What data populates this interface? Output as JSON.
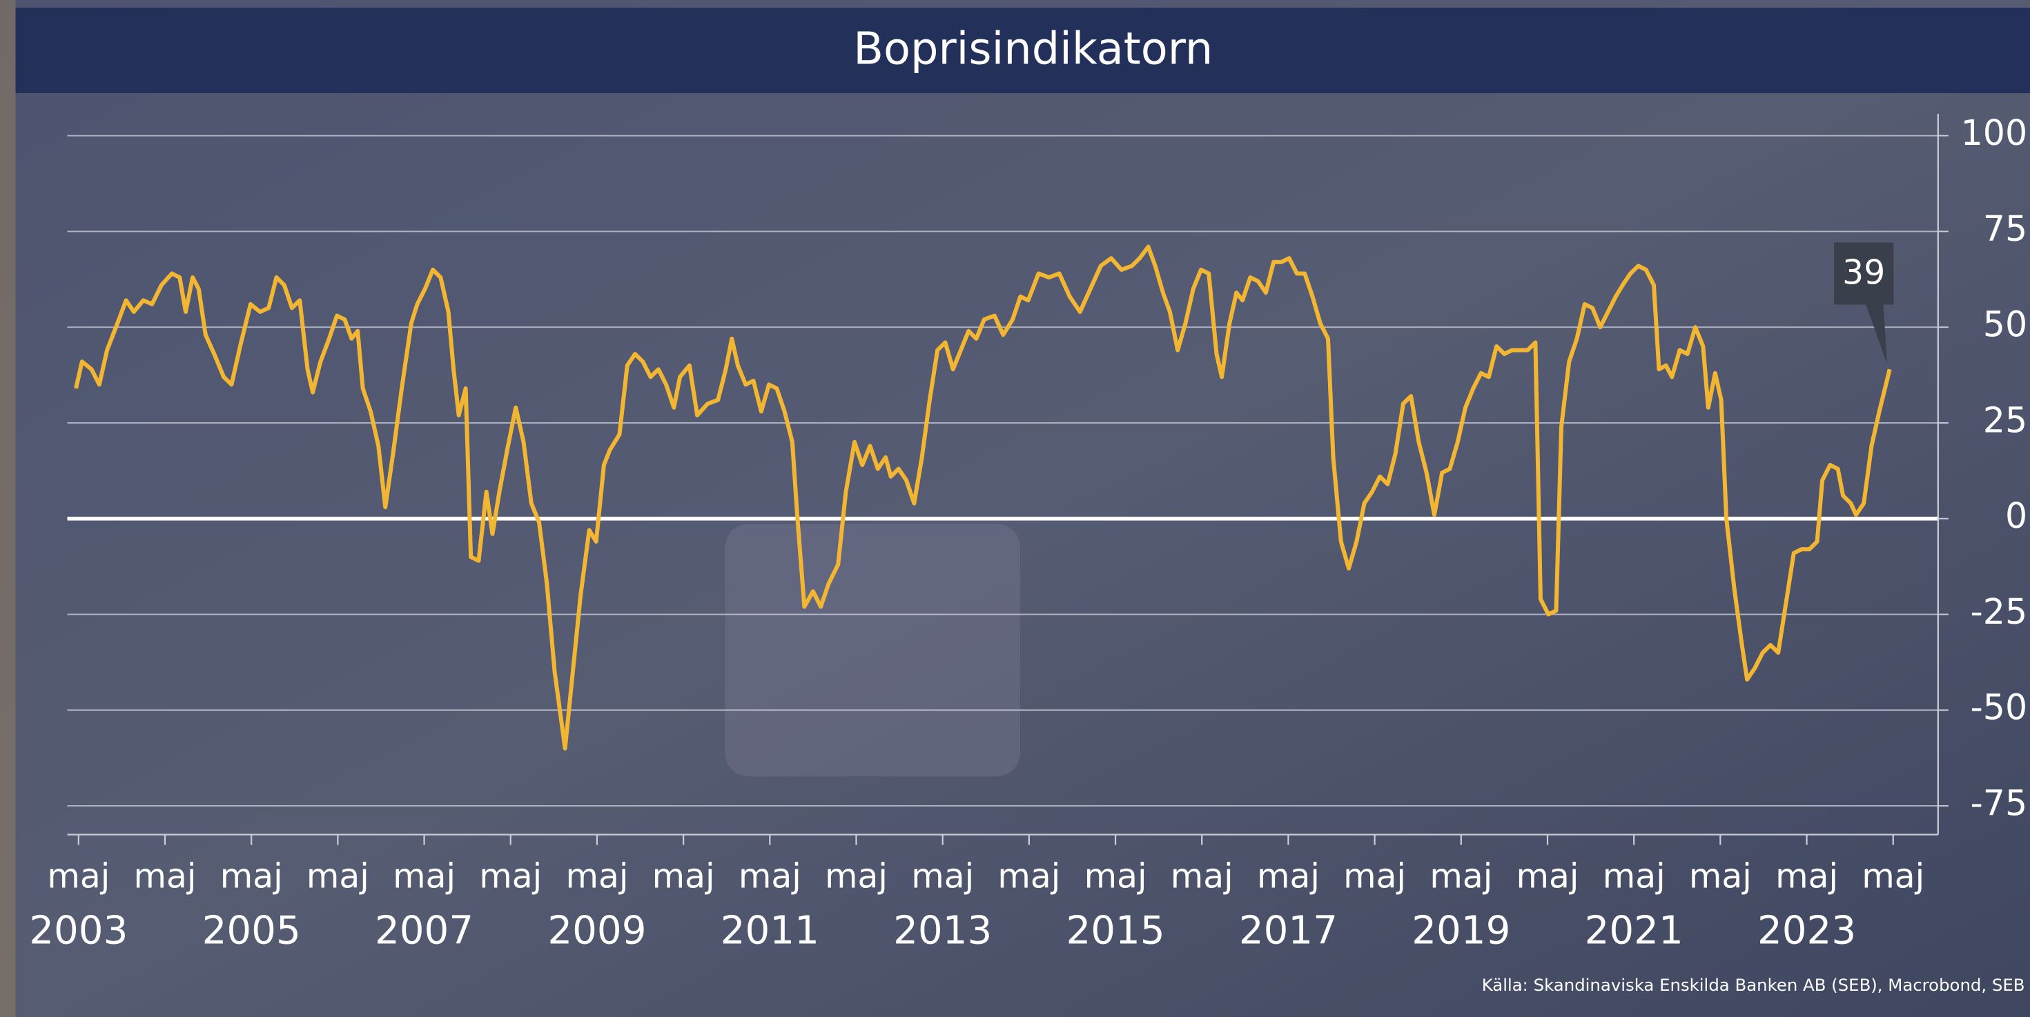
{
  "chart_data": {
    "type": "line",
    "title": "Boprisindikatorn",
    "source": "Källa: Skandinaviska Enskilda Banken AB (SEB), Macrobond, SEB",
    "xlim": [
      2003.2,
      2024.85
    ],
    "ylim": [
      -82.5,
      105.7
    ],
    "yticks": [
      100,
      75,
      50,
      25,
      0,
      -25,
      -50,
      -75
    ],
    "grid": true,
    "xticks": [
      {
        "value": 2003.33,
        "label": "maj"
      },
      {
        "value": 2004.33,
        "label": "maj"
      },
      {
        "value": 2005.33,
        "label": "maj"
      },
      {
        "value": 2006.33,
        "label": "maj"
      },
      {
        "value": 2007.33,
        "label": "maj"
      },
      {
        "value": 2008.33,
        "label": "maj"
      },
      {
        "value": 2009.33,
        "label": "maj"
      },
      {
        "value": 2010.33,
        "label": "maj"
      },
      {
        "value": 2011.33,
        "label": "maj"
      },
      {
        "value": 2012.33,
        "label": "maj"
      },
      {
        "value": 2013.33,
        "label": "maj"
      },
      {
        "value": 2014.33,
        "label": "maj"
      },
      {
        "value": 2015.33,
        "label": "maj"
      },
      {
        "value": 2016.33,
        "label": "maj"
      },
      {
        "value": 2017.33,
        "label": "maj"
      },
      {
        "value": 2018.33,
        "label": "maj"
      },
      {
        "value": 2019.33,
        "label": "maj"
      },
      {
        "value": 2020.33,
        "label": "maj"
      },
      {
        "value": 2021.33,
        "label": "maj"
      },
      {
        "value": 2022.33,
        "label": "maj"
      },
      {
        "value": 2023.33,
        "label": "maj"
      },
      {
        "value": 2024.33,
        "label": "maj"
      }
    ],
    "year_labels": [
      {
        "value": 2003.33,
        "label": "2003"
      },
      {
        "value": 2005.33,
        "label": "2005"
      },
      {
        "value": 2007.33,
        "label": "2007"
      },
      {
        "value": 2009.33,
        "label": "2009"
      },
      {
        "value": 2011.33,
        "label": "2011"
      },
      {
        "value": 2013.33,
        "label": "2013"
      },
      {
        "value": 2015.33,
        "label": "2015"
      },
      {
        "value": 2017.33,
        "label": "2017"
      },
      {
        "value": 2019.33,
        "label": "2019"
      },
      {
        "value": 2021.33,
        "label": "2021"
      },
      {
        "value": 2023.33,
        "label": "2023"
      }
    ],
    "x": [
      2003.3,
      2003.37,
      2003.48,
      2003.57,
      2003.66,
      2003.78,
      2003.88,
      2003.97,
      2004.08,
      2004.18,
      2004.29,
      2004.41,
      2004.5,
      2004.57,
      2004.65,
      2004.72,
      2004.8,
      2004.9,
      2005.01,
      2005.1,
      2005.2,
      2005.32,
      2005.43,
      2005.53,
      2005.62,
      2005.71,
      2005.8,
      2005.89,
      2005.98,
      2006.04,
      2006.13,
      2006.23,
      2006.32,
      2006.41,
      2006.49,
      2006.56,
      2006.62,
      2006.71,
      2006.8,
      2006.88,
      2006.97,
      2007.07,
      2007.18,
      2007.25,
      2007.34,
      2007.43,
      2007.52,
      2007.61,
      2007.67,
      2007.73,
      2007.81,
      2007.87,
      2007.96,
      2008.05,
      2008.12,
      2008.2,
      2008.3,
      2008.39,
      2008.48,
      2008.57,
      2008.66,
      2008.75,
      2008.84,
      2008.96,
      2009.05,
      2009.14,
      2009.24,
      2009.32,
      2009.41,
      2009.48,
      2009.59,
      2009.68,
      2009.77,
      2009.86,
      2009.95,
      2010.04,
      2010.13,
      2010.22,
      2010.29,
      2010.4,
      2010.49,
      2010.61,
      2010.73,
      2010.82,
      2010.89,
      2010.96,
      2011.05,
      2011.14,
      2011.23,
      2011.32,
      2011.41,
      2011.5,
      2011.59,
      2011.65,
      2011.73,
      2011.83,
      2011.92,
      2012.01,
      2012.12,
      2012.21,
      2012.31,
      2012.4,
      2012.49,
      2012.58,
      2012.67,
      2012.73,
      2012.82,
      2012.91,
      2013.0,
      2013.09,
      2013.18,
      2013.27,
      2013.36,
      2013.45,
      2013.54,
      2013.63,
      2013.72,
      2013.81,
      2013.93,
      2014.03,
      2014.14,
      2014.23,
      2014.32,
      2014.44,
      2014.56,
      2014.68,
      2014.8,
      2014.92,
      2015.04,
      2015.16,
      2015.28,
      2015.4,
      2015.52,
      2015.61,
      2015.71,
      2015.79,
      2015.88,
      2015.96,
      2016.05,
      2016.14,
      2016.23,
      2016.32,
      2016.41,
      2016.5,
      2016.56,
      2016.65,
      2016.73,
      2016.8,
      2016.89,
      2016.98,
      2017.07,
      2017.16,
      2017.25,
      2017.34,
      2017.43,
      2017.52,
      2017.61,
      2017.7,
      2017.79,
      2017.85,
      2017.94,
      2018.03,
      2018.12,
      2018.21,
      2018.3,
      2018.39,
      2018.48,
      2018.57,
      2018.66,
      2018.75,
      2018.84,
      2018.93,
      2019.02,
      2019.11,
      2019.2,
      2019.29,
      2019.38,
      2019.47,
      2019.56,
      2019.65,
      2019.74,
      2019.83,
      2019.92,
      2020.01,
      2020.1,
      2020.19,
      2020.25,
      2020.34,
      2020.43,
      2020.49,
      2020.58,
      2020.67,
      2020.76,
      2020.85,
      2020.94,
      2021.03,
      2021.12,
      2021.2,
      2021.29,
      2021.38,
      2021.47,
      2021.56,
      2021.62,
      2021.7,
      2021.77,
      2021.86,
      2021.95,
      2022.04,
      2022.13,
      2022.19,
      2022.27,
      2022.34,
      2022.4,
      2022.49,
      2022.58,
      2022.64,
      2022.73,
      2022.82,
      2022.91,
      2023.0,
      2023.09,
      2023.18,
      2023.27,
      2023.36,
      2023.45,
      2023.51,
      2023.6,
      2023.69,
      2023.75,
      2023.84,
      2023.9,
      2023.99,
      2024.08,
      2024.17,
      2024.29
    ],
    "series": [
      {
        "color": "#f2b632",
        "values": [
          34,
          41,
          39,
          35,
          44,
          51,
          57,
          54,
          57,
          56,
          61,
          64,
          63,
          54,
          63,
          60,
          48,
          43,
          37,
          35,
          45,
          56,
          54,
          55,
          63,
          61,
          55,
          57,
          39,
          33,
          41,
          47,
          53,
          52,
          47,
          49,
          34,
          28,
          19,
          3,
          17,
          34,
          51,
          56,
          60,
          65,
          63,
          54,
          39,
          27,
          34,
          -10,
          -11,
          7,
          -4,
          7,
          19,
          29,
          20,
          4,
          -1,
          -17,
          -40,
          -60,
          -40,
          -20,
          -3,
          -6,
          14,
          18,
          22,
          40,
          43,
          41,
          37,
          39,
          35,
          29,
          37,
          40,
          27,
          30,
          31,
          39,
          47,
          40,
          35,
          36,
          28,
          35,
          34,
          28,
          20,
          0,
          -23,
          -19,
          -23,
          -17,
          -12,
          7,
          20,
          14,
          19,
          13,
          16,
          11,
          13,
          10,
          4,
          16,
          31,
          44,
          46,
          39,
          44,
          49,
          47,
          52,
          53,
          48,
          52,
          58,
          57,
          64,
          63,
          64,
          58,
          54,
          60,
          66,
          68,
          65,
          66,
          68,
          71,
          66,
          59,
          54,
          44,
          51,
          60,
          65,
          64,
          43,
          37,
          51,
          59,
          57,
          63,
          62,
          59,
          67,
          67,
          68,
          64,
          64,
          58,
          51,
          47,
          16,
          -6,
          -13,
          -6,
          4,
          7,
          11,
          9,
          17,
          30,
          32,
          20,
          12,
          1,
          12,
          13,
          20,
          29,
          34,
          38,
          37,
          45,
          43,
          44,
          44,
          44,
          46,
          -21,
          -25,
          -24,
          24,
          41,
          47,
          56,
          55,
          50,
          54,
          58,
          61,
          64,
          66,
          65,
          61,
          39,
          40,
          37,
          44,
          43,
          50,
          45,
          29,
          38,
          31,
          0,
          -18,
          -33,
          -42,
          -39,
          -35,
          -33,
          -35,
          -22,
          -9,
          -8,
          -8,
          -6,
          10,
          14,
          13,
          6,
          4,
          1,
          4,
          19,
          28,
          39
        ]
      }
    ]
  }
}
